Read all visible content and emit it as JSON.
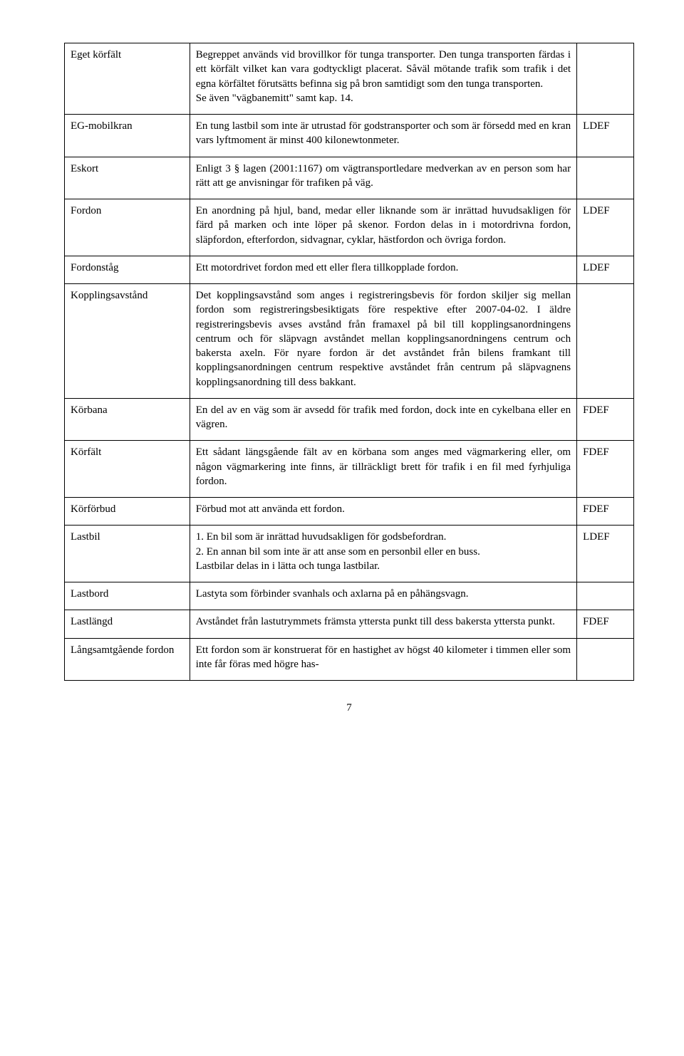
{
  "rows": [
    {
      "term": "Eget körfält",
      "desc": "Begreppet används vid brovillkor för tunga transporter. Den tunga transporten färdas i ett körfält vilket kan vara godtyckligt placerat. Såväl mötande trafik som trafik i det egna körfältet förutsätts befinna sig på bron samtidigt som den tunga transporten.\nSe även \"vägbanemitt\" samt kap. 14.",
      "note": ""
    },
    {
      "term": "EG-mobilkran",
      "desc": "En tung lastbil som inte är utrustad för godstransporter och som är försedd med en kran vars lyftmoment är minst 400 kilonewtonmeter.",
      "note": "LDEF"
    },
    {
      "term": "Eskort",
      "desc": "Enligt 3 § lagen (2001:1167) om vägtransportledare medverkan av en person som har rätt att ge anvisningar för trafiken på väg.",
      "note": ""
    },
    {
      "term": "Fordon",
      "desc": "En anordning på hjul, band, medar eller liknande som är inrättad huvudsakligen för färd på marken och inte löper på skenor. Fordon delas in i motordrivna fordon, släpfordon, efterfordon, sidvagnar, cyklar, hästfordon och övriga fordon.",
      "note": "LDEF"
    },
    {
      "term": "Fordonståg",
      "desc": "Ett motordrivet fordon med ett eller flera tillkopplade fordon.",
      "note": "LDEF"
    },
    {
      "term": "Kopplingsavstånd",
      "desc": "Det kopplingsavstånd som anges i registreringsbevis för fordon skiljer sig mellan fordon som registreringsbesiktigats före respektive efter 2007-04-02. I äldre registreringsbevis avses avstånd från framaxel på bil till kopplingsanordningens centrum och för släpvagn avståndet mellan kopplingsanordningens centrum och bakersta axeln. För nyare fordon är det avståndet från bilens framkant till kopplingsanordningen centrum respektive avståndet från centrum på släpvagnens kopplingsanordning till dess bakkant.",
      "note": ""
    },
    {
      "term": "Körbana",
      "desc": "En del av en väg som är avsedd för trafik med fordon, dock inte en cykelbana eller en vägren.",
      "note": "FDEF"
    },
    {
      "term": "Körfält",
      "desc": "Ett sådant längsgående fält av en körbana som anges med vägmarkering eller, om någon vägmarkering inte finns, är tillräckligt brett för trafik i en fil med fyrhjuliga fordon.",
      "note": "FDEF"
    },
    {
      "term": "Körförbud",
      "desc": "Förbud mot att använda ett fordon.",
      "note": "FDEF"
    },
    {
      "term": "Lastbil",
      "desc": "1. En bil som är inrättad huvudsakligen för godsbefordran.\n2. En annan bil som inte är att anse som en personbil eller en buss.\nLastbilar delas in i lätta och tunga lastbilar.",
      "note": "LDEF"
    },
    {
      "term": "Lastbord",
      "desc": "Lastyta som förbinder svanhals och axlarna på en påhängsvagn.",
      "note": ""
    },
    {
      "term": "Lastlängd",
      "desc": "Avståndet från lastutrymmets främsta yttersta punkt till dess bakersta yttersta punkt.",
      "note": "FDEF"
    },
    {
      "term": "Långsamtgående fordon",
      "desc": "Ett fordon som är konstruerat för en hastighet av högst 40 kilometer i timmen eller som inte får föras med högre has-",
      "note": ""
    }
  ],
  "page_number": "7"
}
